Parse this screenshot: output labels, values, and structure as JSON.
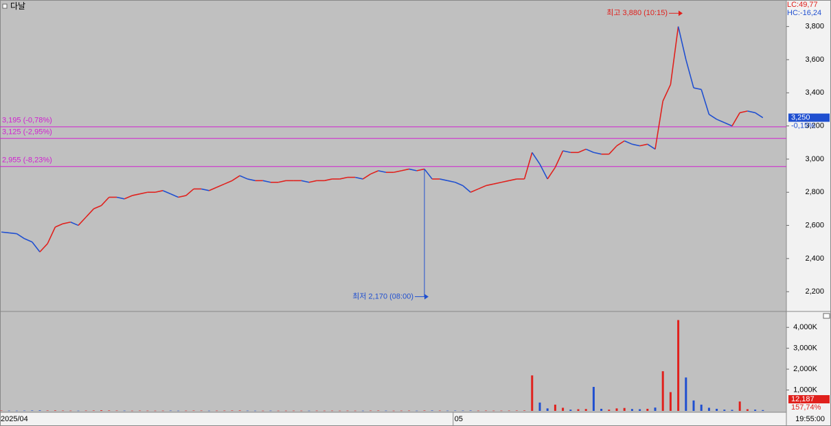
{
  "chart_data": {
    "type": "stock",
    "title": "다날",
    "categories": [
      "2025/04",
      null,
      null,
      null,
      null,
      null,
      null,
      null,
      null,
      null,
      null,
      null,
      null,
      null,
      null,
      null,
      null,
      null,
      null,
      null,
      null,
      null,
      null,
      null,
      null,
      null,
      null,
      null,
      null,
      null,
      null,
      null,
      null,
      null,
      null,
      null,
      null,
      null,
      null,
      null,
      null,
      null,
      null,
      null,
      null,
      null,
      null,
      null,
      null,
      null,
      null,
      null,
      null,
      null,
      null,
      null,
      null,
      null,
      null,
      "05",
      null,
      null,
      null,
      null,
      null,
      null,
      null,
      null,
      null,
      null,
      null,
      null,
      null,
      null,
      null,
      null,
      null,
      null,
      null,
      null,
      null,
      null,
      null,
      null,
      null,
      null,
      null,
      null,
      null,
      null,
      null,
      null,
      null,
      null,
      null,
      null,
      null,
      null,
      null,
      null
    ],
    "time_label": "19:55:00",
    "price": {
      "values": [
        2560,
        2555,
        2550,
        2520,
        2500,
        2440,
        2490,
        2590,
        2610,
        2620,
        2600,
        2650,
        2700,
        2720,
        2770,
        2770,
        2760,
        2780,
        2790,
        2800,
        2800,
        2810,
        2790,
        2770,
        2780,
        2820,
        2820,
        2810,
        2830,
        2850,
        2870,
        2900,
        2880,
        2870,
        2870,
        2860,
        2860,
        2870,
        2870,
        2870,
        2860,
        2870,
        2870,
        2880,
        2880,
        2890,
        2890,
        2880,
        2910,
        2930,
        2920,
        2920,
        2930,
        2940,
        2930,
        2940,
        2880,
        2880,
        2870,
        2860,
        2840,
        2800,
        2820,
        2840,
        2850,
        2860,
        2870,
        2880,
        2880,
        3040,
        2970,
        2880,
        2950,
        3050,
        3040,
        3040,
        3060,
        3040,
        3030,
        3030,
        3080,
        3110,
        3090,
        3080,
        3090,
        3060,
        3350,
        3450,
        3800,
        3600,
        3430,
        3420,
        3270,
        3240,
        3220,
        3200,
        3280,
        3290,
        3280,
        3250
      ],
      "up_color": "#e0201c",
      "down_color": "#1f4fd0",
      "ylim": [
        2085,
        3960
      ],
      "yticks": [
        {
          "value": 2200,
          "label": "2,200"
        },
        {
          "value": 2400,
          "label": "2,400"
        },
        {
          "value": 2600,
          "label": "2,600"
        },
        {
          "value": 2800,
          "label": "2,800"
        },
        {
          "value": 3000,
          "label": "3,000"
        },
        {
          "value": 3200,
          "label": "3,200"
        },
        {
          "value": 3400,
          "label": "3,400"
        },
        {
          "value": 3600,
          "label": "3,600"
        },
        {
          "value": 3800,
          "label": "3,800"
        }
      ],
      "levels": [
        {
          "value": 3195,
          "label": "3,195 (-0,78%)"
        },
        {
          "value": 3125,
          "label": "3,125 (-2,95%)"
        },
        {
          "value": 2955,
          "label": "2,955 (-8,23%)"
        }
      ],
      "level_color": "#d020d0",
      "high": {
        "value": 3880,
        "label": "최고 3,880 (10:15)"
      },
      "low": {
        "value": 2170,
        "label": "최저 2,170 (08:00)"
      },
      "current": {
        "value": 3250,
        "label": "3,250"
      },
      "current_change": "-0,15%",
      "lc": "LC:49,77",
      "hc": "HC:-16,24"
    },
    "volume": {
      "values": [
        15,
        12,
        10,
        14,
        20,
        25,
        18,
        22,
        15,
        12,
        10,
        14,
        18,
        30,
        20,
        15,
        12,
        10,
        14,
        12,
        10,
        12,
        14,
        10,
        12,
        16,
        14,
        10,
        12,
        14,
        18,
        20,
        12,
        10,
        10,
        12,
        10,
        10,
        12,
        10,
        10,
        12,
        10,
        12,
        10,
        12,
        10,
        10,
        14,
        16,
        12,
        10,
        12,
        14,
        10,
        18,
        20,
        14,
        12,
        16,
        14,
        18,
        12,
        14,
        12,
        12,
        14,
        16,
        20,
        1700,
        400,
        120,
        300,
        150,
        60,
        80,
        90,
        1150,
        100,
        60,
        120,
        140,
        90,
        80,
        100,
        160,
        1900,
        900,
        4350,
        1600,
        500,
        300,
        150,
        100,
        60,
        50,
        450,
        80,
        60,
        40
      ],
      "ylim": [
        0,
        4730
      ],
      "yticks": [
        {
          "value": 1000,
          "label": "1,000K"
        },
        {
          "value": 2000,
          "label": "2,000K"
        },
        {
          "value": 3000,
          "label": "3,000K"
        },
        {
          "value": 4000,
          "label": "4,000K"
        }
      ],
      "current": "12,187",
      "current_change": "157,74%"
    }
  }
}
